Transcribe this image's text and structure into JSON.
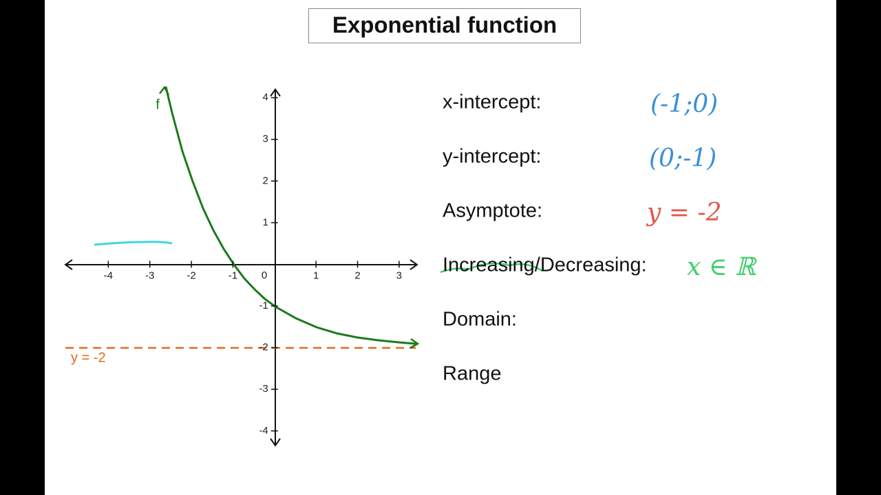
{
  "header": {
    "title": "Exponential function"
  },
  "graph": {
    "function_label": "f",
    "asymptote_label": "y = -2",
    "xlim": [
      -5,
      3.4
    ],
    "ylim": [
      -4.35,
      4.2
    ],
    "xticks": [
      -4,
      -3,
      -2,
      -1,
      0,
      1,
      2,
      3
    ],
    "yticks": [
      -4,
      -3,
      -2,
      -1,
      1,
      2,
      3,
      4
    ]
  },
  "properties": [
    {
      "label": "x-intercept:",
      "answer": "(-1;0)"
    },
    {
      "label": "y-intercept:",
      "answer": "(0;-1)"
    },
    {
      "label": "Asymptote:",
      "answer": "y = -2"
    },
    {
      "label": "Increasing/Decreasing:",
      "answer": "x ∈ ℝ"
    },
    {
      "label": "Domain:"
    },
    {
      "label": "Range"
    }
  ]
}
